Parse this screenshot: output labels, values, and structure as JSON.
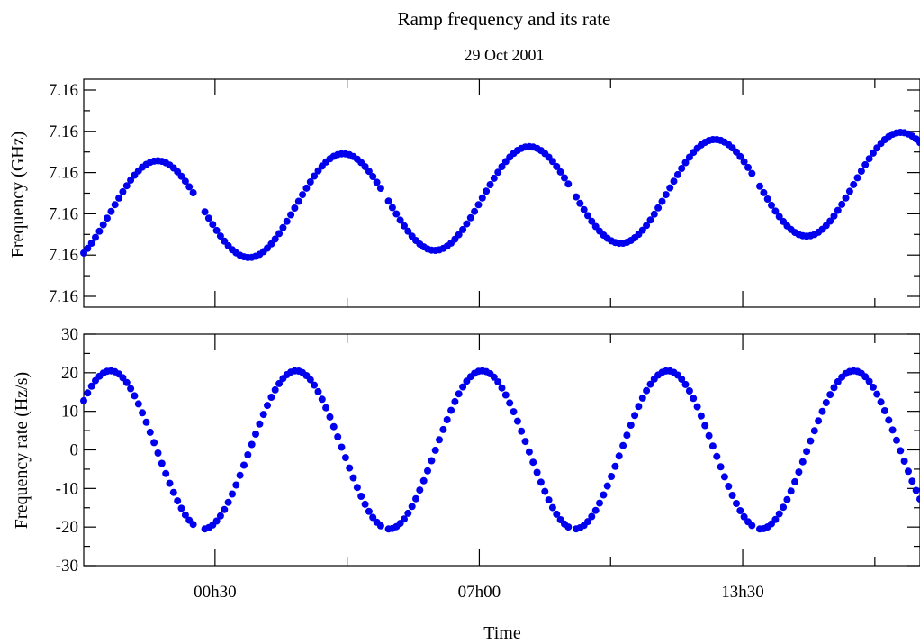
{
  "title": "Ramp frequency and its rate",
  "subtitle": "29 Oct 2001",
  "xlabel": "Time",
  "chart_data": [
    {
      "type": "scatter",
      "panel": "top",
      "ylabel": "Frequency (GHz)",
      "ytick_labels": [
        "7.16",
        "7.16",
        "7.16",
        "7.16",
        "7.16",
        "7.16"
      ],
      "ylim": [
        0,
        5
      ],
      "xlim": [
        0,
        1
      ],
      "color": "#0000ee",
      "periods_visible": 4.5,
      "baseline_drift": 0.7,
      "amplitude": 1.1
    },
    {
      "type": "scatter",
      "panel": "bottom",
      "ylabel": "Frequency rate (Hz/s)",
      "ytick_labels": [
        "-30",
        "-20",
        "-10",
        "0",
        "10",
        "20",
        "30"
      ],
      "ylim": [
        -30,
        30
      ],
      "amplitude": 20.5,
      "xlim": [
        0,
        1
      ],
      "color": "#0000ee",
      "periods_visible": 4.5
    }
  ],
  "xtick_labels": [
    "00h30",
    "07h00",
    "13h30"
  ],
  "color": "#0000ee"
}
